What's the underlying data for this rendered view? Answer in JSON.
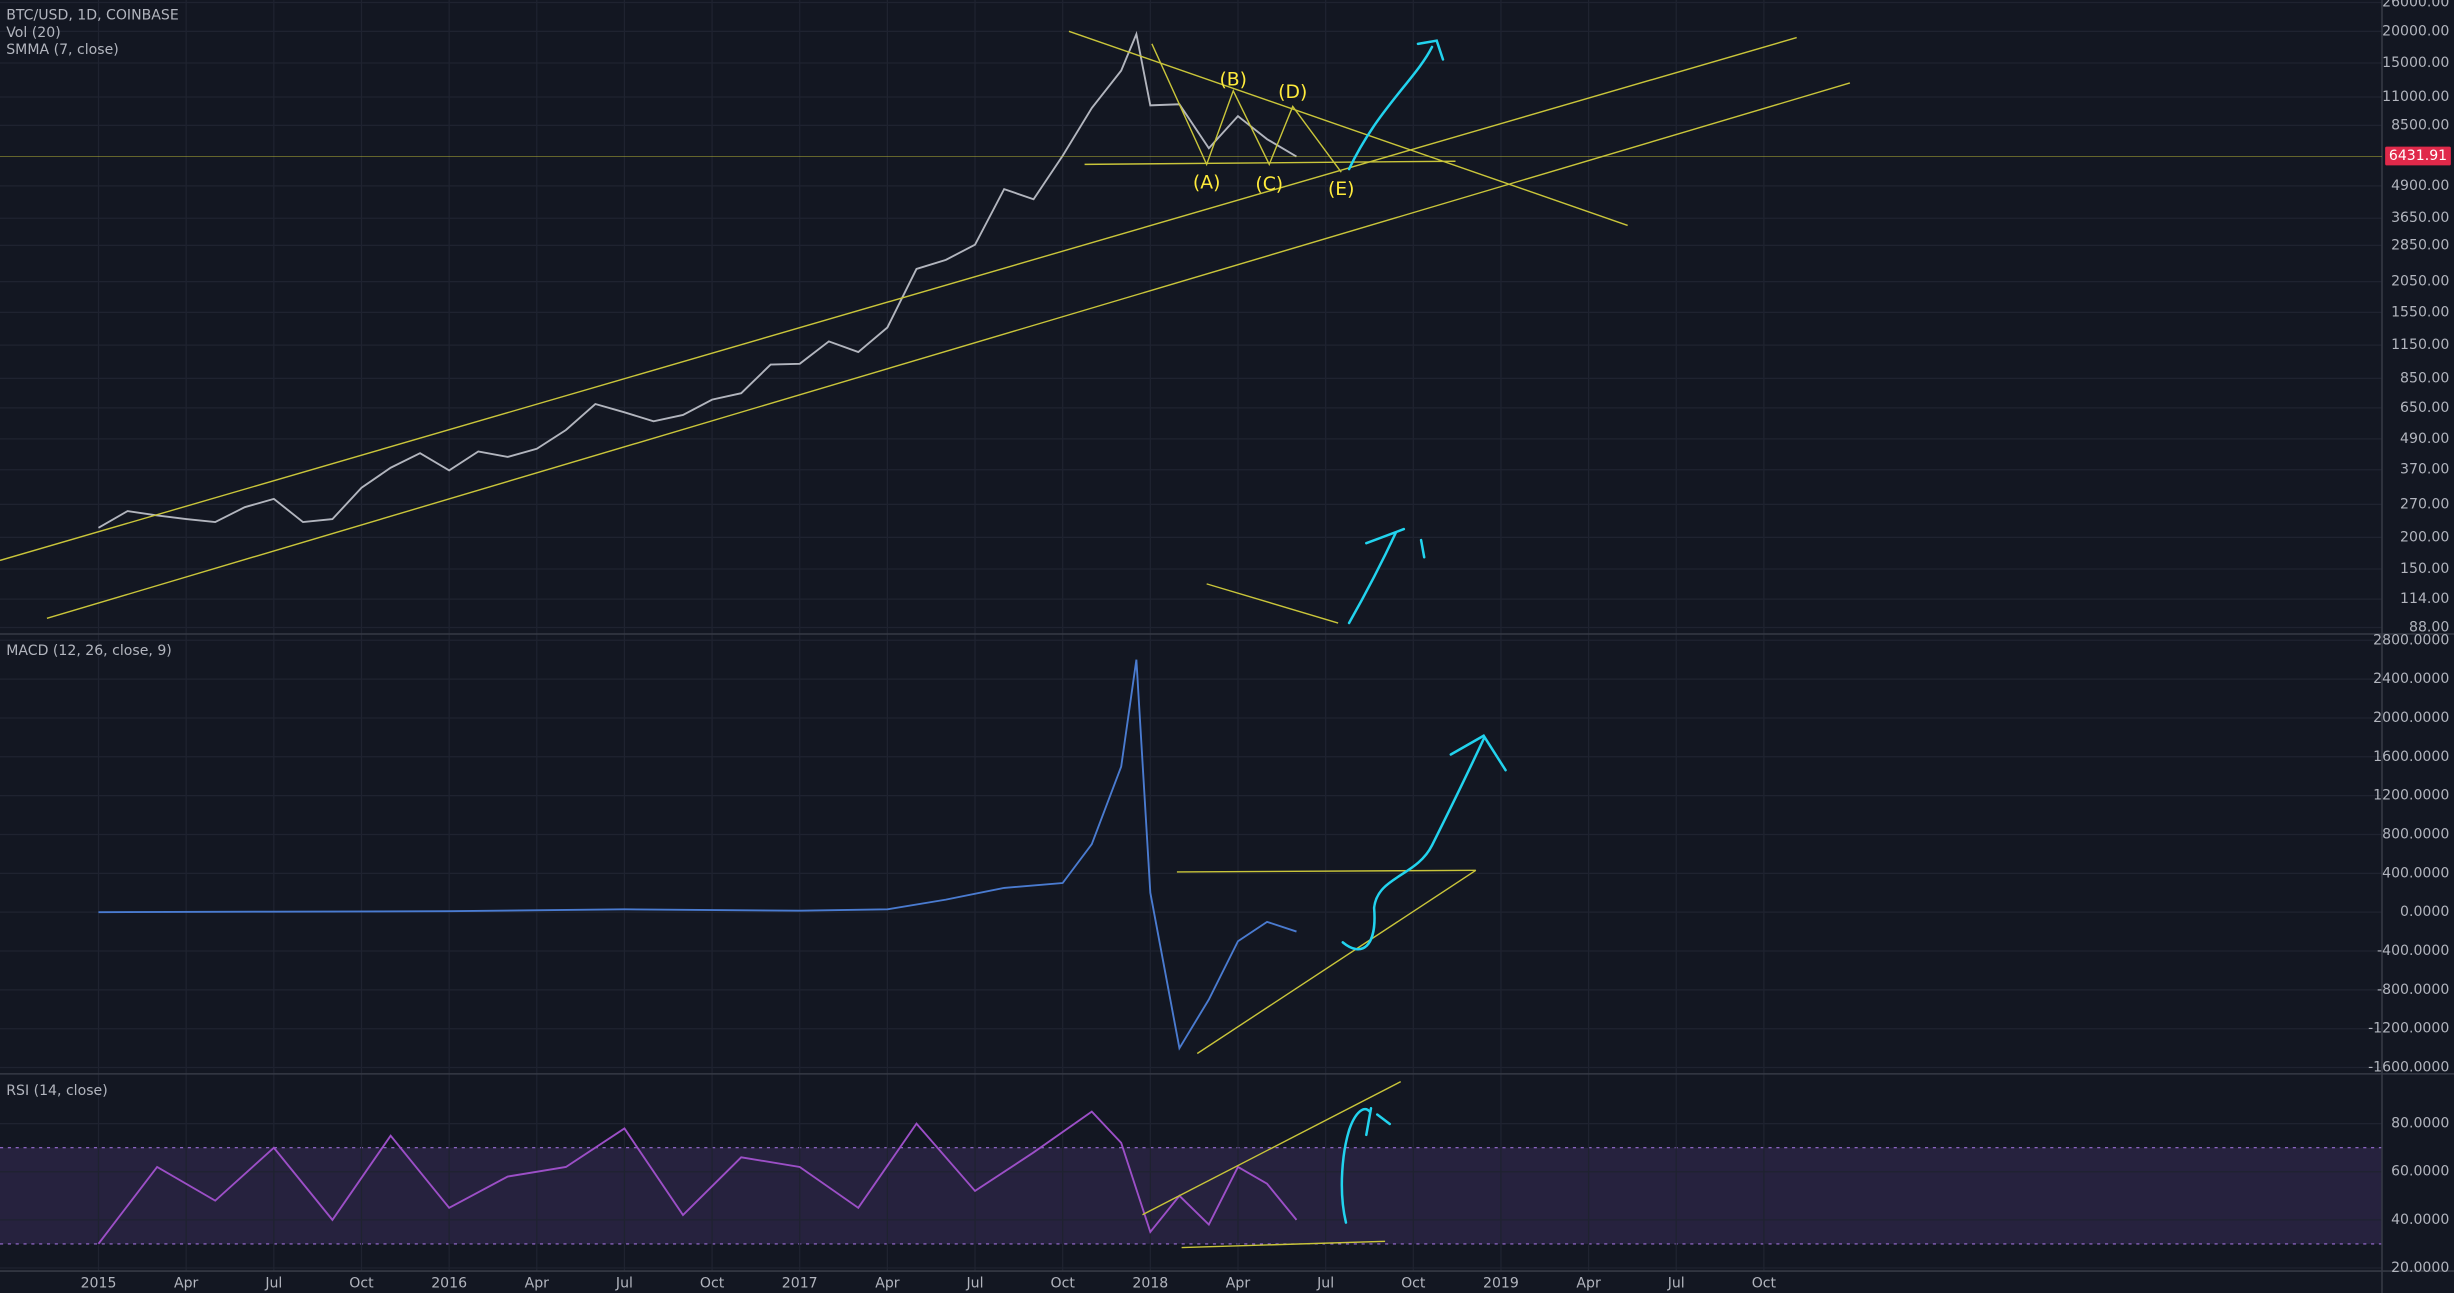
{
  "header": {
    "indicators": [
      "Vol (20)",
      "SMMA (7, close)"
    ]
  },
  "annotations": {
    "labels": [
      "(A)",
      "(B)",
      "(C)",
      "(D)",
      "(E)"
    ],
    "last_price": {
      "value": 6431.91,
      "label": "6431.91"
    }
  },
  "chart_data": [
    {
      "type": "line",
      "title": "BTC/USD, 1D, COINBASE",
      "color": "#b2b5be",
      "ylog": true,
      "x": [
        2015.0,
        2015.083,
        2015.167,
        2015.25,
        2015.333,
        2015.417,
        2015.5,
        2015.583,
        2015.667,
        2015.75,
        2015.833,
        2015.917,
        2016.0,
        2016.083,
        2016.167,
        2016.25,
        2016.333,
        2016.417,
        2016.5,
        2016.583,
        2016.667,
        2016.75,
        2016.833,
        2016.917,
        2017.0,
        2017.083,
        2017.167,
        2017.25,
        2017.333,
        2017.417,
        2017.5,
        2017.583,
        2017.667,
        2017.75,
        2017.833,
        2017.917,
        2017.96,
        2018.0,
        2018.083,
        2018.167,
        2018.25,
        2018.333,
        2018.417
      ],
      "values": [
        218,
        254,
        244,
        236,
        230,
        263,
        284,
        230,
        236,
        314,
        377,
        430,
        368,
        437,
        416,
        448,
        531,
        673,
        624,
        575,
        609,
        700,
        742,
        963,
        970,
        1190,
        1080,
        1350,
        2300,
        2500,
        2870,
        4760,
        4340,
        6450,
        9950,
        14000,
        19500,
        10200,
        10300,
        6900,
        9240,
        7500,
        6400
      ],
      "xlim": [
        2014.719,
        2021.513
      ],
      "ylim": [
        83,
        26600
      ],
      "yticks": [
        {
          "value": 26000,
          "label": "26000.00"
        },
        {
          "value": 20000,
          "label": "20000.00"
        },
        {
          "value": 15000,
          "label": "15000.00"
        },
        {
          "value": 11000,
          "label": "11000.00"
        },
        {
          "value": 8500,
          "label": "8500.00"
        },
        {
          "value": 4900,
          "label": "4900.00"
        },
        {
          "value": 3650,
          "label": "3650.00"
        },
        {
          "value": 2850,
          "label": "2850.00"
        },
        {
          "value": 2050,
          "label": "2050.00"
        },
        {
          "value": 1550,
          "label": "1550.00"
        },
        {
          "value": 1150,
          "label": "1150.00"
        },
        {
          "value": 850,
          "label": "850.00"
        },
        {
          "value": 650,
          "label": "650.00"
        },
        {
          "value": 490,
          "label": "490.00"
        },
        {
          "value": 370,
          "label": "370.00"
        },
        {
          "value": 270,
          "label": "270.00"
        },
        {
          "value": 200,
          "label": "200.00"
        },
        {
          "value": 150,
          "label": "150.00"
        },
        {
          "value": 114,
          "label": "114.00"
        },
        {
          "value": 88,
          "label": "88.00"
        }
      ]
    },
    {
      "type": "line",
      "title": "MACD (12, 26, close, 9)",
      "color": "#4a7bd0",
      "x": [
        2015.0,
        2015.5,
        2016.0,
        2016.5,
        2017.0,
        2017.25,
        2017.417,
        2017.583,
        2017.75,
        2017.833,
        2017.917,
        2017.96,
        2018.0,
        2018.083,
        2018.167,
        2018.25,
        2018.333,
        2018.417
      ],
      "values": [
        0,
        5,
        10,
        30,
        15,
        30,
        130,
        250,
        300,
        700,
        1500,
        2600,
        200,
        -1400,
        -900,
        -300,
        -100,
        -200
      ],
      "xlim": [
        2014.719,
        2021.513
      ],
      "ylim": [
        -1665,
        2865
      ],
      "yticks": [
        {
          "value": 2800,
          "label": "2800.0000"
        },
        {
          "value": 2400,
          "label": "2400.0000"
        },
        {
          "value": 2000,
          "label": "2000.0000"
        },
        {
          "value": 1600,
          "label": "1600.0000"
        },
        {
          "value": 1200,
          "label": "1200.0000"
        },
        {
          "value": 800,
          "label": "800.0000"
        },
        {
          "value": 400,
          "label": "400.0000"
        },
        {
          "value": 0,
          "label": "0.0000"
        },
        {
          "value": -400,
          "label": "-400.0000"
        },
        {
          "value": -800,
          "label": "-800.0000"
        },
        {
          "value": -1200,
          "label": "-1200.0000"
        },
        {
          "value": -1600,
          "label": "-1600.0000"
        }
      ]
    },
    {
      "type": "line",
      "title": "RSI (14, close)",
      "color": "#9c4fc7",
      "x": [
        2015.0,
        2015.167,
        2015.333,
        2015.5,
        2015.667,
        2015.833,
        2016.0,
        2016.167,
        2016.333,
        2016.5,
        2016.667,
        2016.833,
        2017.0,
        2017.167,
        2017.333,
        2017.5,
        2017.667,
        2017.833,
        2017.917,
        2018.0,
        2018.083,
        2018.167,
        2018.25,
        2018.333,
        2018.417
      ],
      "values": [
        30,
        62,
        48,
        70,
        40,
        75,
        45,
        58,
        62,
        78,
        42,
        66,
        62,
        45,
        80,
        52,
        68,
        85,
        72,
        35,
        50,
        38,
        62,
        55,
        40
      ],
      "xlim": [
        2014.719,
        2021.513
      ],
      "ylim": [
        18.7,
        100.7
      ],
      "yticks": [
        {
          "value": 80,
          "label": "80.0000"
        },
        {
          "value": 60,
          "label": "60.0000"
        },
        {
          "value": 40,
          "label": "40.0000"
        },
        {
          "value": 20,
          "label": "20.0000"
        }
      ],
      "band": [
        30,
        70
      ],
      "xticks": [
        {
          "value": 2015,
          "label": "2015"
        },
        {
          "value": 2015.25,
          "label": "Apr"
        },
        {
          "value": 2015.5,
          "label": "Jul"
        },
        {
          "value": 2015.75,
          "label": "Oct"
        },
        {
          "value": 2016,
          "label": "2016"
        },
        {
          "value": 2016.25,
          "label": "Apr"
        },
        {
          "value": 2016.5,
          "label": "Jul"
        },
        {
          "value": 2016.75,
          "label": "Oct"
        },
        {
          "value": 2017,
          "label": "2017"
        },
        {
          "value": 2017.25,
          "label": "Apr"
        },
        {
          "value": 2017.5,
          "label": "Jul"
        },
        {
          "value": 2017.75,
          "label": "Oct"
        },
        {
          "value": 2018,
          "label": "2018"
        },
        {
          "value": 2018.25,
          "label": "Apr"
        },
        {
          "value": 2018.5,
          "label": "Jul"
        },
        {
          "value": 2018.75,
          "label": "Oct"
        },
        {
          "value": 2019,
          "label": "2019"
        },
        {
          "value": 2019.25,
          "label": "Apr"
        },
        {
          "value": 2019.5,
          "label": "Jul"
        },
        {
          "value": 2019.75,
          "label": "Oct"
        }
      ]
    }
  ]
}
